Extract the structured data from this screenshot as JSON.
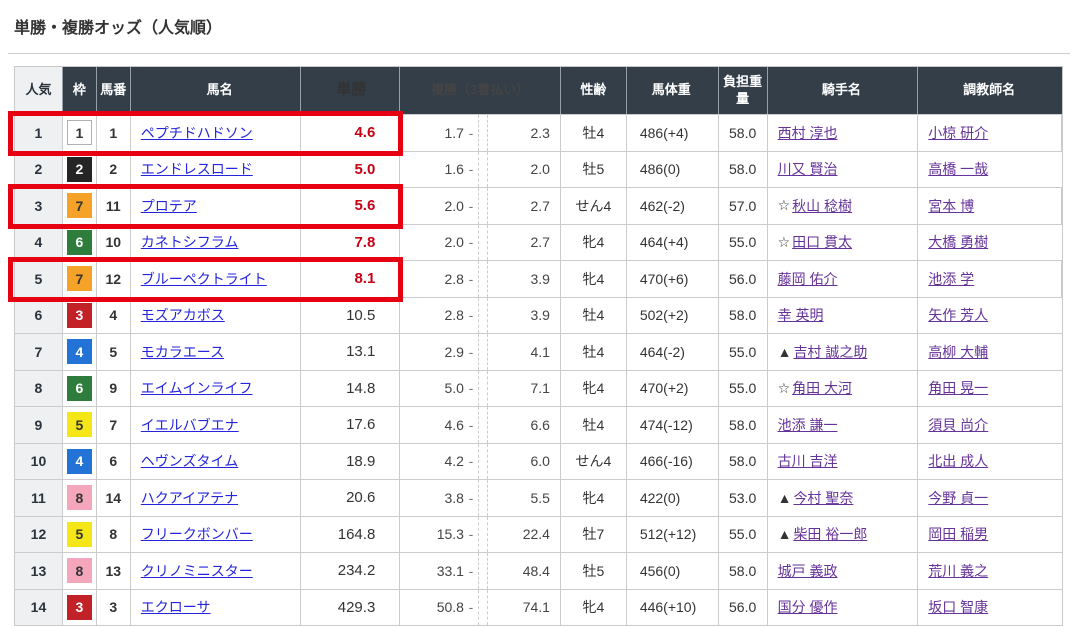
{
  "page": {
    "title": "単勝・複勝オッズ（人気順）"
  },
  "colors": {
    "header_bg": "#333e48",
    "highlight_red": "#e60012",
    "hot_odds_red": "#c80014",
    "horse_link_blue": "#2525dd",
    "visited_link_purple": "#663399",
    "rank_col_bg": "#eef0f1",
    "frame_colors": {
      "1": "#ffffff",
      "2": "#252525",
      "3": "#c22128",
      "4": "#2273d5",
      "5": "#f5e618",
      "6": "#2e7d3c",
      "7": "#f5a328",
      "8": "#f3a6bc"
    }
  },
  "table": {
    "place_separator": "-",
    "headers": {
      "rank": "人気",
      "frame": "枠",
      "num": "馬番",
      "name": "馬名",
      "win": "単勝",
      "place": "複勝（3着払い）",
      "sex": "性齢",
      "weight": "馬体重",
      "load": "負担重量",
      "jockey": "騎手名",
      "trainer": "調教師名"
    },
    "rows": [
      {
        "rank": "1",
        "frame": "1",
        "num": "1",
        "name": "ペプチドハドソン",
        "win": "4.6",
        "win_hot": true,
        "place_min": "1.7",
        "place_max": "2.3",
        "sex": "牡4",
        "weight": "486(+4)",
        "load": "58.0",
        "jockey_prefix": "",
        "jockey": "西村 淳也",
        "trainer": "小椋 研介",
        "highlighted": true
      },
      {
        "rank": "2",
        "frame": "2",
        "num": "2",
        "name": "エンドレスロード",
        "win": "5.0",
        "win_hot": true,
        "place_min": "1.6",
        "place_max": "2.0",
        "sex": "牡5",
        "weight": "486(0)",
        "load": "58.0",
        "jockey_prefix": "",
        "jockey": "川又 賢治",
        "trainer": "高橋 一哉",
        "highlighted": false
      },
      {
        "rank": "3",
        "frame": "7",
        "num": "11",
        "name": "プロテア",
        "win": "5.6",
        "win_hot": true,
        "place_min": "2.0",
        "place_max": "2.7",
        "sex": "せん4",
        "weight": "462(-2)",
        "load": "57.0",
        "jockey_prefix": "☆",
        "jockey": "秋山 稔樹",
        "trainer": "宮本 博",
        "highlighted": true
      },
      {
        "rank": "4",
        "frame": "6",
        "num": "10",
        "name": "カネトシフラム",
        "win": "7.8",
        "win_hot": true,
        "place_min": "2.0",
        "place_max": "2.7",
        "sex": "牝4",
        "weight": "464(+4)",
        "load": "55.0",
        "jockey_prefix": "☆",
        "jockey": "田口 貫太",
        "trainer": "大橋 勇樹",
        "highlighted": false
      },
      {
        "rank": "5",
        "frame": "7",
        "num": "12",
        "name": "ブルーペクトライト",
        "win": "8.1",
        "win_hot": true,
        "place_min": "2.8",
        "place_max": "3.9",
        "sex": "牝4",
        "weight": "470(+6)",
        "load": "56.0",
        "jockey_prefix": "",
        "jockey": "藤岡 佑介",
        "trainer": "池添 学",
        "highlighted": true
      },
      {
        "rank": "6",
        "frame": "3",
        "num": "4",
        "name": "モズアカボス",
        "win": "10.5",
        "win_hot": false,
        "place_min": "2.8",
        "place_max": "3.9",
        "sex": "牡4",
        "weight": "502(+2)",
        "load": "58.0",
        "jockey_prefix": "",
        "jockey": "幸 英明",
        "trainer": "矢作 芳人",
        "highlighted": false
      },
      {
        "rank": "7",
        "frame": "4",
        "num": "5",
        "name": "モカラエース",
        "win": "13.1",
        "win_hot": false,
        "place_min": "2.9",
        "place_max": "4.1",
        "sex": "牡4",
        "weight": "464(-2)",
        "load": "55.0",
        "jockey_prefix": "▲",
        "jockey": "吉村 誠之助",
        "trainer": "高柳 大輔",
        "highlighted": false
      },
      {
        "rank": "8",
        "frame": "6",
        "num": "9",
        "name": "エイムインライフ",
        "win": "14.8",
        "win_hot": false,
        "place_min": "5.0",
        "place_max": "7.1",
        "sex": "牝4",
        "weight": "470(+2)",
        "load": "55.0",
        "jockey_prefix": "☆",
        "jockey": "角田 大河",
        "trainer": "角田 晃一",
        "highlighted": false
      },
      {
        "rank": "9",
        "frame": "5",
        "num": "7",
        "name": "イエルバブエナ",
        "win": "17.6",
        "win_hot": false,
        "place_min": "4.6",
        "place_max": "6.6",
        "sex": "牡4",
        "weight": "474(-12)",
        "load": "58.0",
        "jockey_prefix": "",
        "jockey": "池添 謙一",
        "trainer": "須貝 尚介",
        "highlighted": false
      },
      {
        "rank": "10",
        "frame": "4",
        "num": "6",
        "name": "ヘヴンズタイム",
        "win": "18.9",
        "win_hot": false,
        "place_min": "4.2",
        "place_max": "6.0",
        "sex": "せん4",
        "weight": "466(-16)",
        "load": "58.0",
        "jockey_prefix": "",
        "jockey": "古川 吉洋",
        "trainer": "北出 成人",
        "highlighted": false
      },
      {
        "rank": "11",
        "frame": "8",
        "num": "14",
        "name": "ハクアイアテナ",
        "win": "20.6",
        "win_hot": false,
        "place_min": "3.8",
        "place_max": "5.5",
        "sex": "牝4",
        "weight": "422(0)",
        "load": "53.0",
        "jockey_prefix": "▲",
        "jockey": "今村 聖奈",
        "trainer": "今野 貞一",
        "highlighted": false
      },
      {
        "rank": "12",
        "frame": "5",
        "num": "8",
        "name": "フリークボンバー",
        "win": "164.8",
        "win_hot": false,
        "place_min": "15.3",
        "place_max": "22.4",
        "sex": "牡7",
        "weight": "512(+12)",
        "load": "55.0",
        "jockey_prefix": "▲",
        "jockey": "柴田 裕一郎",
        "trainer": "岡田 稲男",
        "highlighted": false
      },
      {
        "rank": "13",
        "frame": "8",
        "num": "13",
        "name": "クリノミニスター",
        "win": "234.2",
        "win_hot": false,
        "place_min": "33.1",
        "place_max": "48.4",
        "sex": "牡5",
        "weight": "456(0)",
        "load": "58.0",
        "jockey_prefix": "",
        "jockey": "城戸 義政",
        "trainer": "荒川 義之",
        "highlighted": false
      },
      {
        "rank": "14",
        "frame": "3",
        "num": "3",
        "name": "エクローサ",
        "win": "429.3",
        "win_hot": false,
        "place_min": "50.8",
        "place_max": "74.1",
        "sex": "牝4",
        "weight": "446(+10)",
        "load": "56.0",
        "jockey_prefix": "",
        "jockey": "国分 優作",
        "trainer": "坂口 智康",
        "highlighted": false
      }
    ]
  }
}
